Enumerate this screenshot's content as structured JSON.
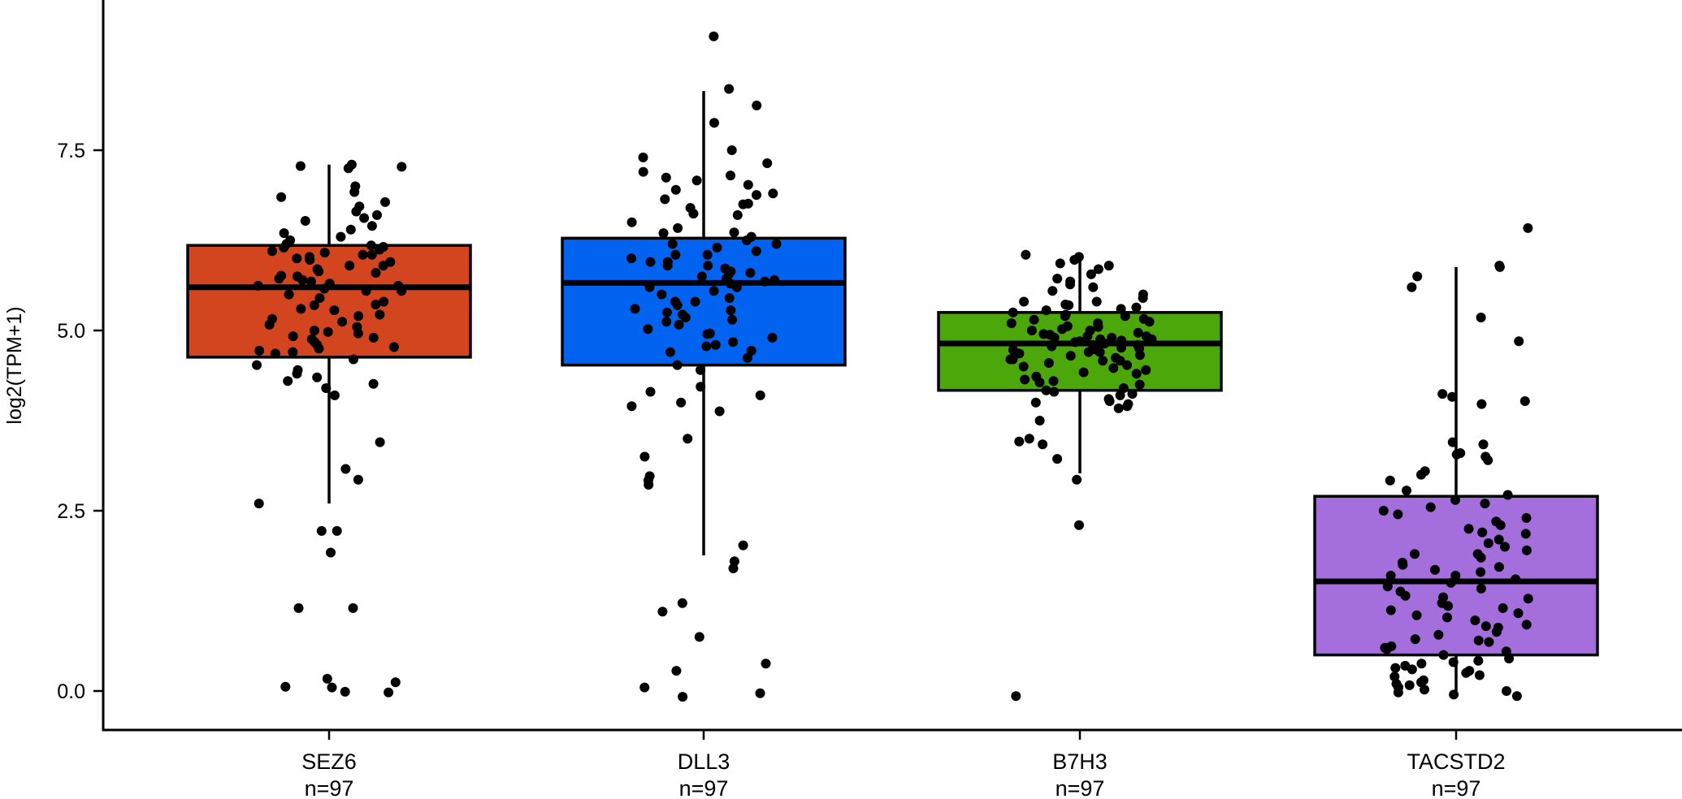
{
  "chart_data": {
    "type": "box",
    "title": "",
    "xlabel": "",
    "ylabel": "log2(TPM+1)",
    "ylim": [
      -0.7,
      9.5
    ],
    "y_ticks": [
      0.0,
      2.5,
      5.0,
      7.5
    ],
    "y_tick_labels": [
      "0.0",
      "2.5",
      "5.0",
      "7.5"
    ],
    "grid": false,
    "legend": "none",
    "categories": [
      "SEZ6",
      "DLL3",
      "B7H3",
      "TACSTD2"
    ],
    "n_labels": [
      "n=97",
      "n=97",
      "n=97",
      "n=97"
    ],
    "boxes": [
      {
        "name": "SEZ6",
        "color": "#D2451E",
        "q1": 4.63,
        "median": 5.6,
        "q3": 6.18,
        "whisker_low": 2.6,
        "whisker_high": 7.3,
        "points": [
          7.3,
          7.28,
          7.25,
          7.27,
          7.0,
          6.92,
          6.85,
          6.78,
          6.72,
          6.6,
          6.56,
          6.52,
          6.45,
          6.35,
          6.3,
          6.25,
          6.2,
          6.18,
          6.16,
          6.12,
          6.1,
          6.08,
          6.05,
          6.02,
          6.0,
          5.98,
          5.95,
          5.9,
          5.85,
          5.82,
          5.8,
          5.76,
          5.72,
          5.7,
          5.68,
          5.65,
          5.62,
          5.58,
          5.55,
          5.5,
          5.45,
          5.4,
          5.36,
          5.3,
          5.28,
          5.22,
          5.2,
          5.16,
          5.12,
          5.08,
          5.05,
          5.0,
          4.96,
          4.92,
          4.88,
          4.84,
          4.8,
          4.77,
          4.75,
          4.72,
          4.7,
          4.68,
          4.6,
          4.52,
          4.45,
          4.4,
          4.35,
          4.3,
          4.26,
          4.2,
          4.1,
          3.45,
          3.08,
          2.93,
          2.6,
          2.22,
          2.22,
          1.92,
          1.15,
          1.15,
          0.17,
          0.12,
          0.06,
          0.05,
          -0.02,
          -0.01,
          5.62,
          5.9,
          6.4,
          5.35,
          4.9,
          6.65,
          5.75,
          6.05,
          5.55,
          4.98,
          6.15
        ]
      },
      {
        "name": "DLL3",
        "color": "#0263F0",
        "q1": 4.52,
        "median": 5.66,
        "q3": 6.28,
        "whisker_low": 1.88,
        "whisker_high": 8.32,
        "points": [
          9.08,
          8.35,
          8.12,
          7.88,
          7.5,
          7.4,
          7.32,
          7.2,
          7.12,
          7.08,
          7.02,
          6.95,
          6.88,
          6.82,
          6.76,
          6.7,
          6.62,
          6.5,
          6.42,
          6.36,
          6.3,
          6.25,
          6.2,
          6.15,
          6.1,
          6.05,
          6.0,
          5.95,
          5.9,
          5.86,
          5.82,
          5.78,
          5.75,
          5.72,
          5.68,
          5.65,
          5.6,
          5.55,
          5.5,
          5.45,
          5.4,
          5.35,
          5.28,
          5.22,
          5.18,
          5.12,
          5.08,
          5.02,
          4.96,
          4.9,
          4.84,
          4.78,
          4.72,
          4.62,
          4.52,
          4.45,
          4.22,
          4.15,
          4.1,
          4.0,
          3.95,
          3.88,
          3.5,
          3.25,
          2.98,
          2.92,
          2.86,
          2.02,
          1.8,
          1.7,
          1.22,
          1.1,
          0.75,
          0.38,
          0.28,
          0.05,
          -0.03,
          -0.08,
          5.7,
          6.35,
          5.25,
          4.8,
          6.9,
          5.9,
          6.6,
          5.4,
          5.8,
          6.2,
          4.95,
          5.6,
          6.05,
          5.15,
          7.15,
          4.7,
          5.95,
          6.75,
          5.3
        ]
      },
      {
        "name": "B7H3",
        "color": "#4CA70A",
        "q1": 4.17,
        "median": 4.82,
        "q3": 5.25,
        "whisker_low": 3.02,
        "whisker_high": 6.02,
        "points": [
          6.05,
          6.02,
          5.98,
          5.93,
          5.9,
          5.85,
          5.78,
          5.72,
          5.68,
          5.64,
          5.6,
          5.55,
          5.5,
          5.45,
          5.4,
          5.36,
          5.32,
          5.28,
          5.25,
          5.22,
          5.2,
          5.16,
          5.12,
          5.1,
          5.06,
          5.02,
          5.0,
          4.97,
          4.94,
          4.92,
          4.9,
          4.88,
          4.86,
          4.84,
          4.82,
          4.8,
          4.78,
          4.76,
          4.74,
          4.72,
          4.7,
          4.68,
          4.66,
          4.62,
          4.6,
          4.58,
          4.55,
          4.52,
          4.48,
          4.45,
          4.42,
          4.4,
          4.36,
          4.32,
          4.28,
          4.25,
          4.2,
          4.17,
          4.15,
          4.12,
          4.1,
          4.05,
          4.02,
          4.0,
          3.98,
          3.95,
          3.92,
          3.75,
          3.5,
          3.46,
          3.42,
          3.22,
          2.93,
          2.3,
          -0.07,
          4.9,
          5.05,
          4.75,
          5.15,
          4.6,
          4.95,
          5.3,
          4.85,
          4.7,
          5.0,
          4.5,
          5.2,
          4.65,
          4.88,
          5.1,
          4.3,
          5.4,
          4.8,
          4.92,
          4.58,
          5.35,
          4.73
        ]
      },
      {
        "name": "TACSTD2",
        "color": "#A46EDD",
        "q1": 0.5,
        "median": 1.52,
        "q3": 2.7,
        "whisker_low": 0.0,
        "whisker_high": 5.88,
        "points": [
          6.42,
          5.9,
          5.88,
          5.75,
          5.6,
          5.18,
          4.85,
          4.12,
          4.08,
          4.02,
          3.98,
          3.45,
          3.42,
          3.3,
          3.28,
          3.25,
          3.2,
          3.05,
          3.0,
          2.92,
          2.78,
          2.72,
          2.65,
          2.55,
          2.5,
          2.45,
          2.4,
          2.3,
          2.25,
          2.18,
          2.1,
          2.05,
          2.0,
          1.95,
          1.9,
          1.85,
          1.78,
          1.72,
          1.68,
          1.65,
          1.6,
          1.55,
          1.5,
          1.45,
          1.42,
          1.38,
          1.32,
          1.28,
          1.22,
          1.18,
          1.12,
          1.08,
          1.02,
          0.98,
          0.92,
          0.88,
          0.82,
          0.78,
          0.72,
          0.68,
          0.62,
          0.58,
          0.55,
          0.5,
          0.45,
          0.42,
          0.38,
          0.35,
          0.32,
          0.28,
          0.25,
          0.22,
          0.2,
          0.15,
          0.12,
          0.1,
          0.08,
          0.05,
          0.02,
          0.0,
          -0.02,
          -0.05,
          -0.07,
          1.6,
          0.9,
          2.2,
          1.3,
          0.6,
          1.75,
          0.3,
          2.6,
          1.15,
          0.7,
          1.9,
          0.4,
          1.05,
          2.35
        ]
      }
    ]
  }
}
